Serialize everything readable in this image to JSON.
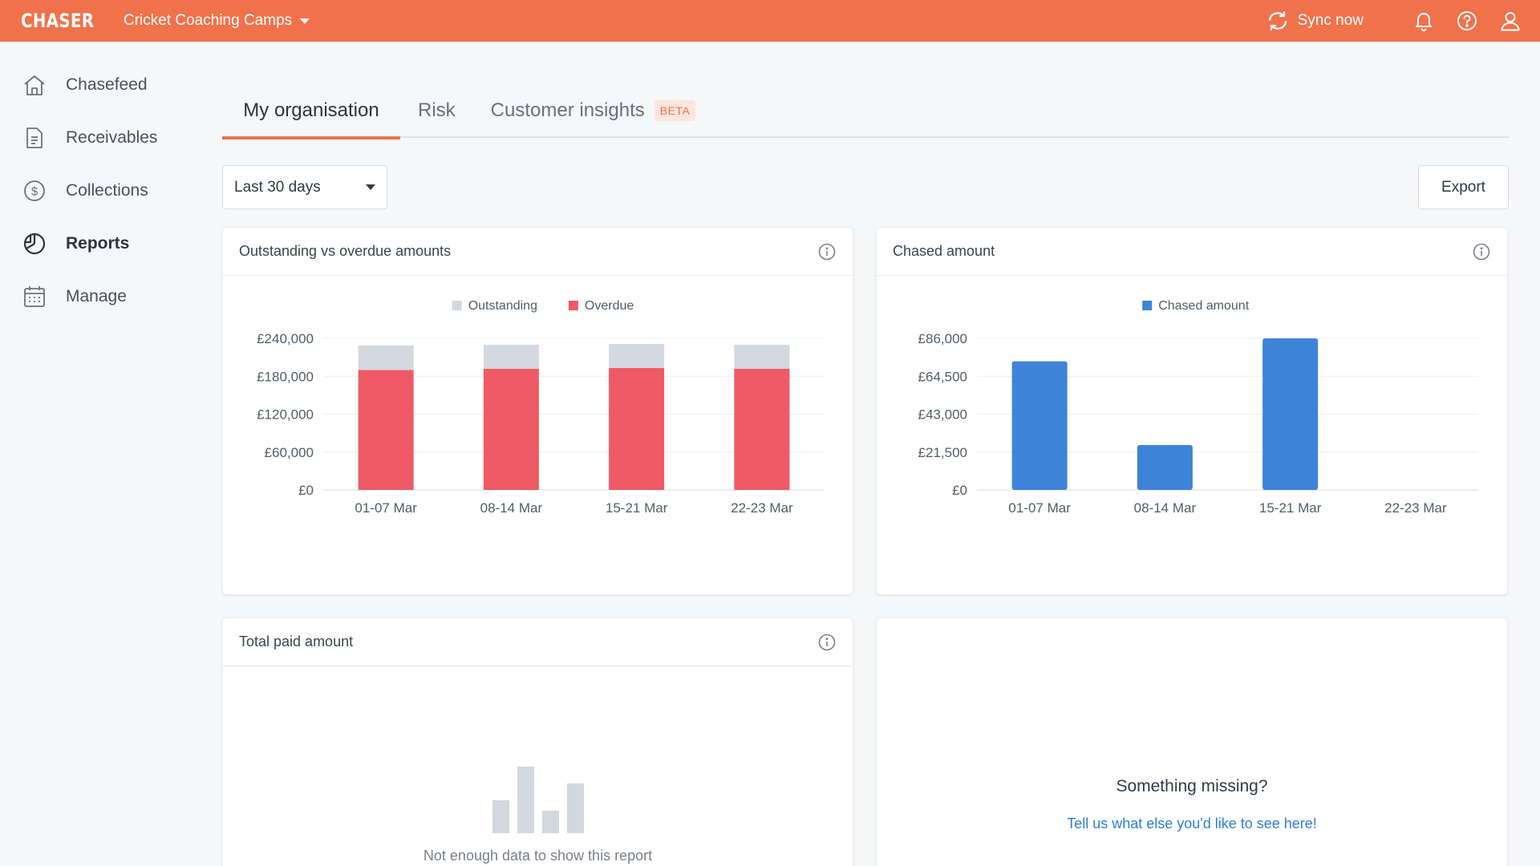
{
  "topbar": {
    "logo": "CHASER",
    "org_name": "Cricket Coaching Camps",
    "sync_label": "Sync now",
    "icons": [
      "sync-icon",
      "bell-icon",
      "help-icon",
      "user-icon"
    ]
  },
  "sidebar": {
    "items": [
      {
        "label": "Chasefeed",
        "icon": "home-icon",
        "active": false
      },
      {
        "label": "Receivables",
        "icon": "document-icon",
        "active": false
      },
      {
        "label": "Collections",
        "icon": "dollar-coin-icon",
        "active": false
      },
      {
        "label": "Reports",
        "icon": "pie-chart-icon",
        "active": true
      },
      {
        "label": "Manage",
        "icon": "calendar-icon",
        "active": false
      }
    ]
  },
  "tabs": [
    {
      "label": "My organisation",
      "active": true
    },
    {
      "label": "Risk",
      "active": false
    },
    {
      "label": "Customer insights",
      "badge": "BETA",
      "active": false
    }
  ],
  "controls": {
    "range_value": "Last 30 days",
    "export_label": "Export"
  },
  "cards": {
    "outstanding": {
      "title": "Outstanding vs overdue amounts"
    },
    "chased": {
      "title": "Chased amount"
    },
    "paid": {
      "title": "Total paid amount",
      "empty_text": "Not enough data to show this report"
    },
    "missing": {
      "title": "Something missing?",
      "link": "Tell us what else you'd like to see here!"
    }
  },
  "colors": {
    "brand": "#f0724b",
    "outstanding": "#d3d8e1",
    "overdue": "#ee5a65",
    "chased": "#3d84d9",
    "link": "#2d7fd6"
  },
  "chart_data": [
    {
      "type": "bar",
      "stacked": true,
      "categories": [
        "01-07 Mar",
        "08-14 Mar",
        "15-21 Mar",
        "22-23 Mar"
      ],
      "series": [
        {
          "name": "Overdue",
          "values": [
            190000,
            192000,
            193000,
            192000
          ]
        },
        {
          "name": "Outstanding",
          "values": [
            39000,
            38000,
            38000,
            38000
          ]
        }
      ],
      "yticks": [
        "£0",
        "£60,000",
        "£120,000",
        "£180,000",
        "£240,000"
      ],
      "ylim": [
        0,
        240000
      ],
      "legend": "top-center"
    },
    {
      "type": "bar",
      "categories": [
        "01-07 Mar",
        "08-14 Mar",
        "15-21 Mar",
        "22-23 Mar"
      ],
      "series": [
        {
          "name": "Chased amount",
          "values": [
            73000,
            25500,
            86000,
            0
          ]
        }
      ],
      "yticks": [
        "£0",
        "£21,500",
        "£43,000",
        "£64,500",
        "£86,000"
      ],
      "ylim": [
        0,
        86000
      ],
      "legend": "top-center"
    }
  ]
}
